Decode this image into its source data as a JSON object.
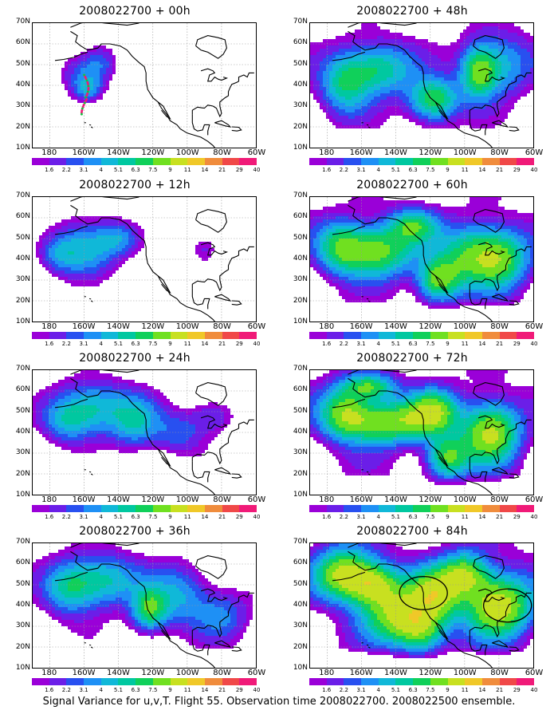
{
  "caption": "Signal Variance for u,v,T. Flight 55. Observation time 2008022700. 2008022500 ensemble.",
  "lat_labels": [
    "70N",
    "60N",
    "50N",
    "40N",
    "30N",
    "20N",
    "10N"
  ],
  "lon_labels": [
    "180",
    "160W",
    "140W",
    "120W",
    "100W",
    "80W",
    "60W"
  ],
  "colorbar_labels": [
    "1.6",
    "2.2",
    "3.1",
    "4",
    "5.1",
    "6.3",
    "7.5",
    "9",
    "11",
    "14",
    "21",
    "29",
    "40"
  ],
  "colorbar_colors": [
    "#9a00d8",
    "#6b1ee8",
    "#2850f0",
    "#1e90f5",
    "#10b8d8",
    "#00c8a0",
    "#10d05a",
    "#70e020",
    "#c8e020",
    "#f0c828",
    "#f08c3c",
    "#f04848",
    "#f01a78"
  ],
  "panels": [
    {
      "id": "00h",
      "title": "2008022700 + 00h",
      "intensity": 0.15,
      "blobs": [
        [
          -160,
          45,
          14,
          10,
          3.5
        ],
        [
          -150,
          52,
          10,
          8,
          2.4
        ],
        [
          -158,
          38,
          8,
          6,
          3.2
        ]
      ],
      "circles": [],
      "track": true
    },
    {
      "id": "12h",
      "title": "2008022700 + 12h",
      "intensity": 0.35,
      "blobs": [
        [
          -160,
          45,
          18,
          13,
          5.5
        ],
        [
          -140,
          50,
          12,
          8,
          3.5
        ],
        [
          -175,
          42,
          10,
          8,
          2.5
        ],
        [
          -90,
          45,
          8,
          7,
          2
        ]
      ],
      "circles": [],
      "track": false
    },
    {
      "id": "24h",
      "title": "2008022700 + 24h",
      "intensity": 0.5,
      "blobs": [
        [
          -155,
          52,
          22,
          12,
          5.5
        ],
        [
          -130,
          45,
          14,
          12,
          4.8
        ],
        [
          -170,
          45,
          14,
          10,
          3.5
        ],
        [
          -105,
          40,
          14,
          10,
          3
        ],
        [
          -85,
          48,
          12,
          8,
          2.5
        ]
      ],
      "circles": [],
      "track": false
    },
    {
      "id": "36h",
      "title": "2008022700 + 36h",
      "intensity": 0.6,
      "blobs": [
        [
          -150,
          52,
          22,
          12,
          6
        ],
        [
          -122,
          38,
          10,
          10,
          7.5
        ],
        [
          -170,
          48,
          14,
          12,
          4.5
        ],
        [
          -105,
          45,
          16,
          14,
          4.2
        ],
        [
          -80,
          35,
          16,
          12,
          3.2
        ]
      ],
      "circles": [],
      "track": false
    },
    {
      "id": "48h",
      "title": "2008022700 + 48h",
      "intensity": 0.7,
      "blobs": [
        [
          -150,
          48,
          20,
          12,
          6.5
        ],
        [
          -118,
          33,
          14,
          10,
          8
        ],
        [
          -92,
          46,
          10,
          12,
          7.2
        ],
        [
          -170,
          40,
          14,
          14,
          5.5
        ],
        [
          -80,
          50,
          18,
          14,
          4.8
        ]
      ],
      "circles": [],
      "track": false
    },
    {
      "id": "60h",
      "title": "2008022700 + 60h",
      "intensity": 0.8,
      "blobs": [
        [
          -150,
          44,
          20,
          12,
          8.5
        ],
        [
          -130,
          56,
          14,
          8,
          6.5
        ],
        [
          -115,
          30,
          12,
          10,
          8.5
        ],
        [
          -95,
          42,
          20,
          14,
          7.5
        ],
        [
          -172,
          46,
          14,
          12,
          6.8
        ],
        [
          -78,
          40,
          16,
          14,
          6
        ]
      ],
      "circles": [],
      "track": false
    },
    {
      "id": "72h",
      "title": "2008022700 + 72h",
      "intensity": 0.9,
      "blobs": [
        [
          -145,
          45,
          24,
          10,
          9.5
        ],
        [
          -118,
          50,
          14,
          10,
          8.5
        ],
        [
          -85,
          40,
          16,
          14,
          10.5
        ],
        [
          -110,
          28,
          12,
          10,
          8
        ],
        [
          -170,
          50,
          14,
          12,
          7.8
        ],
        [
          -155,
          62,
          14,
          6,
          7.2
        ]
      ],
      "circles": [],
      "track": false
    },
    {
      "id": "84h",
      "title": "2008022700 + 84h",
      "intensity": 1.0,
      "blobs": [
        [
          -170,
          55,
          16,
          12,
          10.5
        ],
        [
          -152,
          50,
          14,
          10,
          9.5
        ],
        [
          -118,
          45,
          16,
          12,
          10
        ],
        [
          -80,
          40,
          18,
          14,
          11.5
        ],
        [
          -100,
          55,
          14,
          10,
          8.8
        ],
        [
          -140,
          35,
          18,
          12,
          8.5
        ],
        [
          -125,
          28,
          14,
          10,
          7.5
        ]
      ],
      "circles": [
        [
          -124,
          46,
          9,
          8
        ],
        [
          -75,
          40,
          9,
          8
        ]
      ],
      "track": false
    }
  ]
}
